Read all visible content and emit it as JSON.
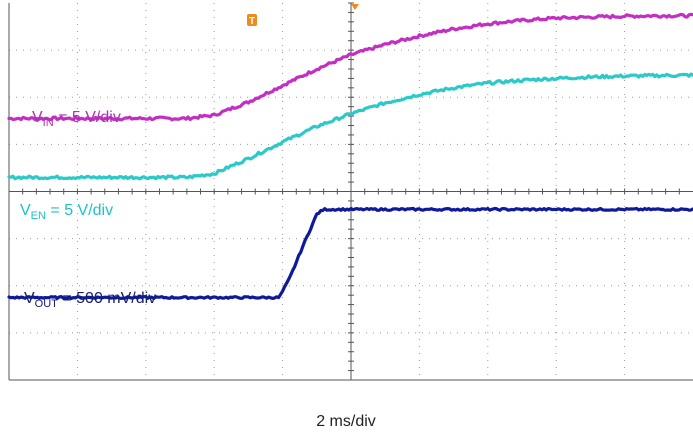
{
  "chart_data": {
    "type": "line",
    "grid": true,
    "x_divisions": 10,
    "y_divisions": 8,
    "x_scale": "2 ms/div",
    "xlim": [
      0,
      10
    ],
    "ylim": [
      0,
      8
    ],
    "trigger_marker": "T",
    "series": [
      {
        "name": "VIN",
        "label_main": "V",
        "label_sub": "IN",
        "label_rest": " = 5 V/div",
        "color": "#b02fb0",
        "line_color": "#c22fc2",
        "noise": 0.03,
        "x": [
          0,
          2.6,
          3.0,
          3.5,
          4.0,
          4.5,
          5.0,
          5.5,
          6.0,
          6.5,
          7.0,
          7.5,
          8.0,
          8.5,
          9.0,
          9.5,
          10
        ],
        "y": [
          5.55,
          5.55,
          5.62,
          5.9,
          6.25,
          6.6,
          6.9,
          7.12,
          7.3,
          7.45,
          7.56,
          7.63,
          7.68,
          7.7,
          7.72,
          7.73,
          7.73
        ]
      },
      {
        "name": "VEN",
        "label_main": "V",
        "label_sub": "EN",
        "label_rest": " = 5 V/div",
        "color": "#1fc3c3",
        "line_color": "#2cc9c9",
        "noise": 0.03,
        "x": [
          0,
          2.6,
          3.0,
          3.5,
          4.0,
          4.5,
          5.0,
          5.5,
          6.0,
          6.5,
          7.0,
          7.5,
          8.0,
          8.5,
          9.0,
          9.5,
          10
        ],
        "y": [
          4.3,
          4.3,
          4.38,
          4.7,
          5.05,
          5.38,
          5.65,
          5.88,
          6.06,
          6.2,
          6.3,
          6.36,
          6.4,
          6.43,
          6.45,
          6.46,
          6.47
        ]
      },
      {
        "name": "VOUT",
        "label_main": "V",
        "label_sub": "OUT",
        "label_rest": " = 500 mV/div",
        "color": "#14206e",
        "line_color": "#0e1a9a",
        "noise": 0.02,
        "x": [
          0,
          3.95,
          4.1,
          4.3,
          4.5,
          4.6,
          10
        ],
        "y": [
          1.75,
          1.75,
          2.15,
          2.85,
          3.52,
          3.62,
          3.62
        ]
      }
    ]
  }
}
